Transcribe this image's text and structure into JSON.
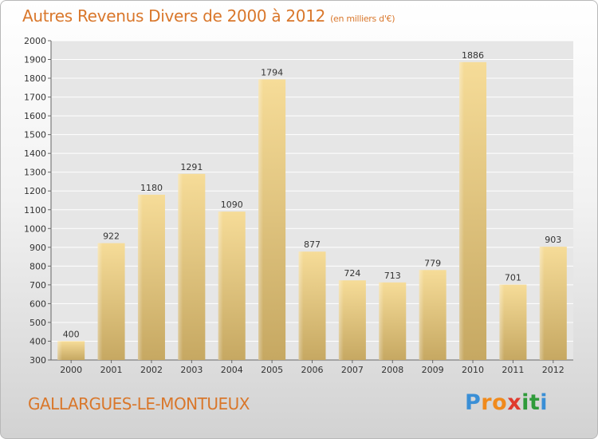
{
  "chart_data": {
    "type": "bar",
    "title": "Autres Revenus Divers de 2000 à 2012",
    "unit_note": "(en milliers d'€)",
    "categories": [
      "2000",
      "2001",
      "2002",
      "2003",
      "2004",
      "2005",
      "2006",
      "2007",
      "2008",
      "2009",
      "2010",
      "2011",
      "2012"
    ],
    "values": [
      400,
      922,
      1180,
      1291,
      1090,
      1794,
      877,
      724,
      713,
      779,
      1886,
      701,
      903
    ],
    "ylim": [
      300,
      2000
    ],
    "yticks": [
      300,
      400,
      500,
      600,
      700,
      800,
      900,
      1000,
      1100,
      1200,
      1300,
      1400,
      1500,
      1600,
      1700,
      1800,
      1900,
      2000
    ],
    "grid": true,
    "xlabel": "",
    "ylabel": "",
    "bar_color": "#e6c878"
  },
  "footer": {
    "commune": "GALLARGUES-LE-MONTUEUX",
    "logo_letters": [
      "P",
      "r",
      "o",
      "x",
      "i",
      "t",
      "i"
    ],
    "logo_colors": [
      "#3a8fd6",
      "#f08a1c",
      "#f08a1c",
      "#e03a2e",
      "#2f9b3a",
      "#2f9b3a",
      "#3a8fd6"
    ]
  },
  "colors": {
    "accent": "#d9772b"
  }
}
